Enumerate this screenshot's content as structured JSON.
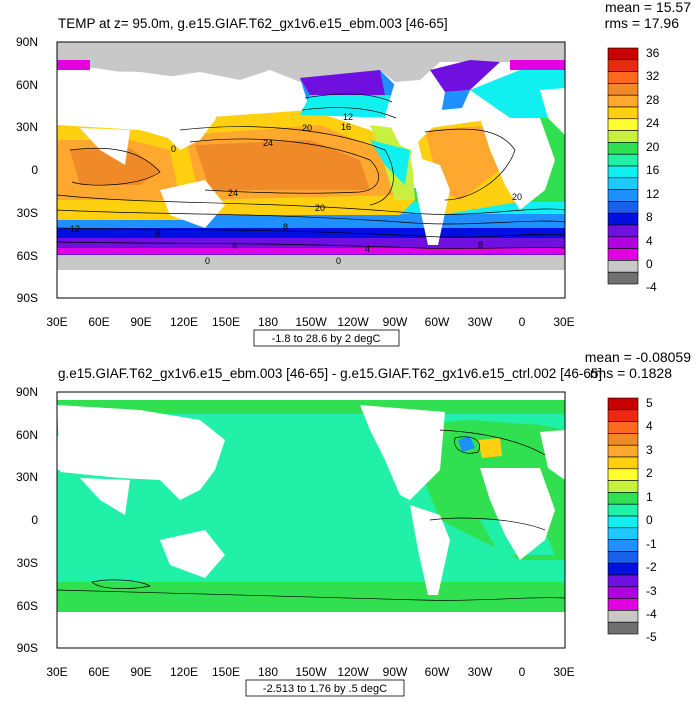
{
  "panels": [
    {
      "title": "TEMP at z=  95.0m, g.e15.GIAF.T62_gx1v6.e15_ebm.003 [46-65]",
      "mean": "mean = 15.57",
      "rms": "rms = 17.96",
      "range_label": "-1.8 to 28.6 by 2 degC",
      "lat_labels": [
        "90N",
        "60N",
        "30N",
        "0",
        "30S",
        "60S",
        "90S"
      ],
      "lon_labels": [
        "30E",
        "60E",
        "90E",
        "120E",
        "150E",
        "180",
        "150W",
        "120W",
        "90W",
        "60W",
        "30W",
        "0",
        "30E"
      ],
      "colorbar_labels": [
        "36",
        "32",
        "28",
        "24",
        "20",
        "16",
        "12",
        "8",
        "4",
        "0",
        "-4"
      ],
      "colorbar_colors": [
        "#c80000",
        "#ec2a10",
        "#ff6a20",
        "#f08a28",
        "#ffa830",
        "#ffd010",
        "#ffff30",
        "#c8f040",
        "#30e050",
        "#20f0a8",
        "#10f0f0",
        "#20c8ff",
        "#1e90ff",
        "#1860e8",
        "#0010e0",
        "#7010e0",
        "#b000e0",
        "#e000e0",
        "#c8c8c8",
        "#707070"
      ],
      "contour_labels": [
        "24",
        "20",
        "24",
        "20",
        "12",
        "8",
        "4",
        "0",
        "0",
        "0",
        "16",
        "12",
        "8",
        "4",
        "8",
        "20"
      ]
    },
    {
      "title": "g.e15.GIAF.T62_gx1v6.e15_ebm.003 [46-65] - g.e15.GIAF.T62_gx1v6.e15_ctrl.002 [46-65]",
      "mean": "mean = -0.08059",
      "rms": "rms = 0.1828",
      "range_label": "-2.513 to 1.76 by .5 degC",
      "lat_labels": [
        "90N",
        "60N",
        "30N",
        "0",
        "30S",
        "60S",
        "90S"
      ],
      "lon_labels": [
        "30E",
        "60E",
        "90E",
        "120E",
        "150E",
        "180",
        "150W",
        "120W",
        "90W",
        "60W",
        "30W",
        "0",
        "30E"
      ],
      "colorbar_labels": [
        "5",
        "4",
        "3",
        "2",
        "1",
        "0",
        "-1",
        "-2",
        "-3",
        "-4",
        "-5"
      ],
      "colorbar_colors": [
        "#c80000",
        "#ec2a10",
        "#ff6a20",
        "#f08a28",
        "#ffa830",
        "#ffd010",
        "#ffff30",
        "#c8f040",
        "#30e050",
        "#20f0a8",
        "#10f0f0",
        "#20c8ff",
        "#1e90ff",
        "#1860e8",
        "#0010e0",
        "#7010e0",
        "#b000e0",
        "#e000e0",
        "#c8c8c8",
        "#707070"
      ]
    }
  ]
}
